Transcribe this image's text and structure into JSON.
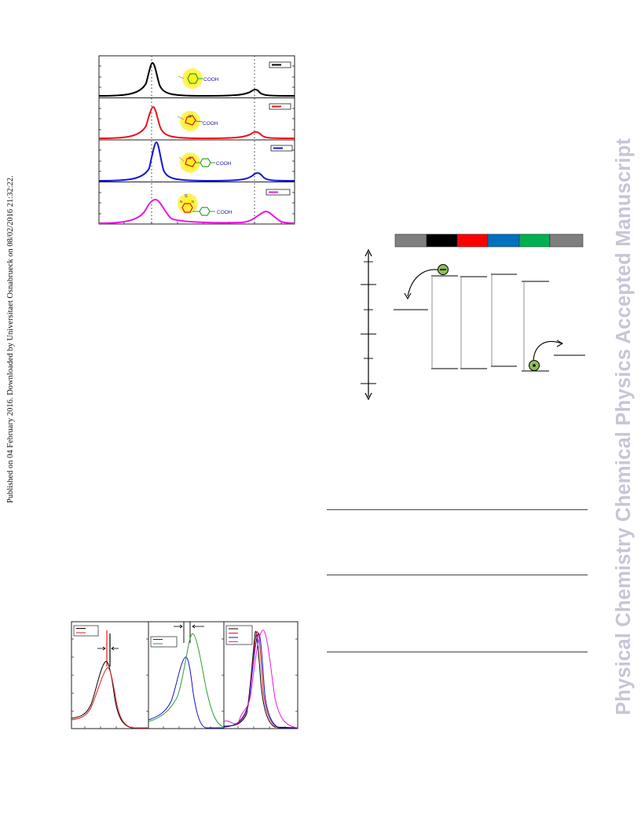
{
  "side_note": "Published on 04 February 2016. Downloaded by Universitaet Osnabrueck on 08/02/2016 21:32:22.",
  "watermark": "Physical Chemistry Chemical Physics Accepted Manuscript",
  "spectra_panel": {
    "rows": [
      {
        "color": "#000000",
        "molecule_label": "COOH"
      },
      {
        "color": "#e8141e",
        "molecule_label": "COOH"
      },
      {
        "color": "#1414d2",
        "molecule_label": "COOH"
      },
      {
        "color": "#ee14e6",
        "molecule_label": "COOH"
      }
    ]
  },
  "energy_diagram": {
    "bar_colors": [
      "#7f7f7f",
      "#000000",
      "#ff0000",
      "#0070c0",
      "#00b050",
      "#7f7f7f"
    ]
  }
}
